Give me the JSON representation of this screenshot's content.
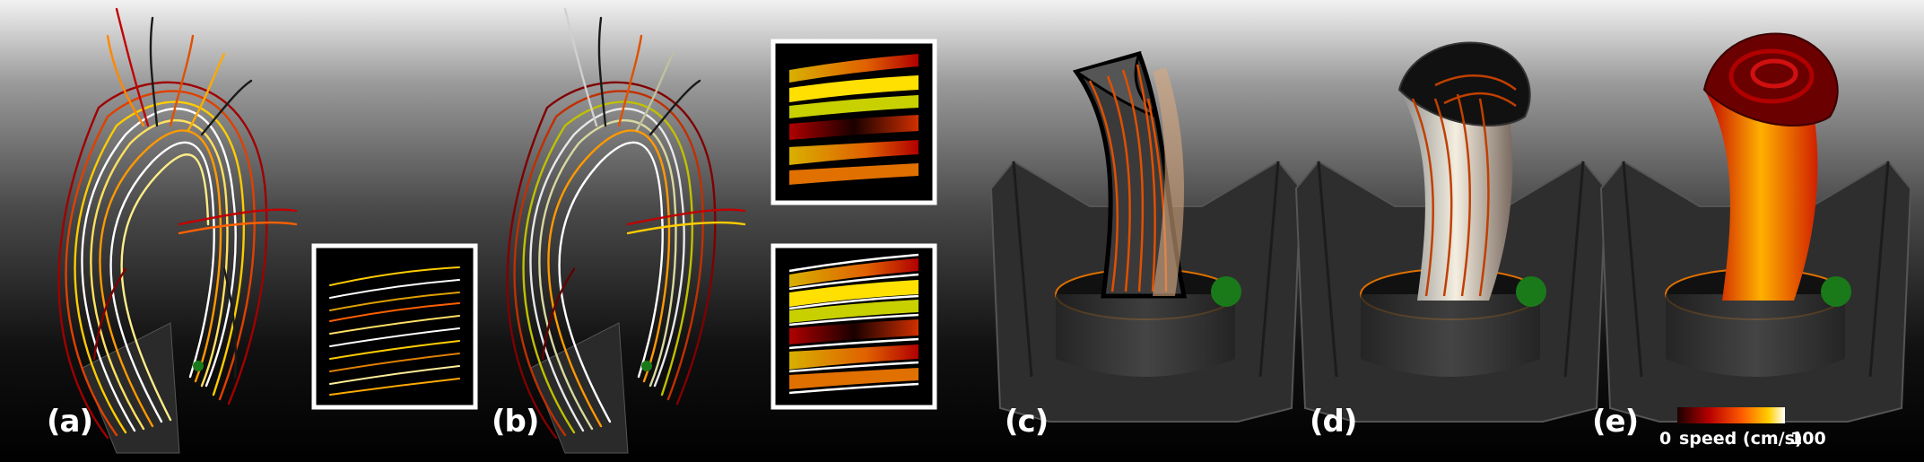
{
  "panels": [
    {
      "id": "a",
      "label": "(a)"
    },
    {
      "id": "b",
      "label": "(b)"
    },
    {
      "id": "c",
      "label": "(c)"
    },
    {
      "id": "d",
      "label": "(d)"
    },
    {
      "id": "e",
      "label": "(e)"
    }
  ],
  "colorbar": {
    "min_label": "0",
    "title": "speed (cm/s)",
    "max_label": "100",
    "colors": [
      "#1a0000",
      "#b80000",
      "#ff5a00",
      "#ffd000",
      "#ffffff"
    ]
  },
  "colors": {
    "seed_marker": "#1a7a1a",
    "ring": "#e07000",
    "pipe": "#3a3a3a",
    "inset_border": "#ffffff"
  }
}
